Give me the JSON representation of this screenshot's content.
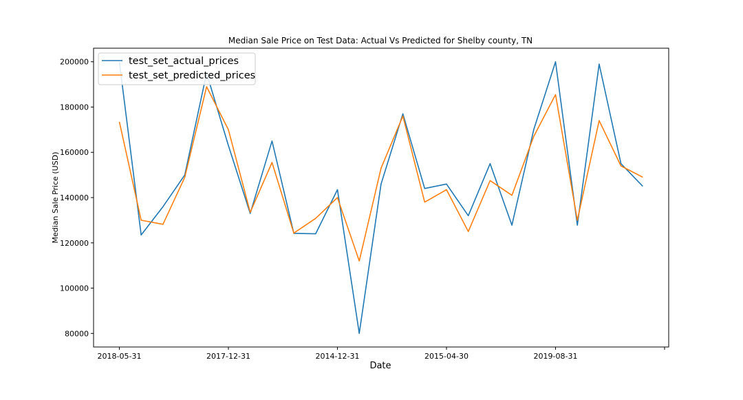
{
  "chart_data": {
    "type": "line",
    "title": "Median Sale Price on Test Data: Actual Vs Predicted for Shelby county, TN",
    "xlabel": "Date",
    "ylabel": "Median Sale Price (USD)",
    "x_tick_labels": [
      "2018-05-31",
      "2017-12-31",
      "2014-12-31",
      "2015-04-30",
      "2019-08-31"
    ],
    "y_ticks": [
      80000,
      100000,
      120000,
      140000,
      160000,
      180000,
      200000
    ],
    "ylim": [
      74000,
      206000
    ],
    "grid": false,
    "legend_position": "top-left",
    "series": [
      {
        "name": "test_set_actual_prices",
        "color": "#1f77b4",
        "values": [
          200000,
          123500,
          136000,
          150000,
          195000,
          163000,
          133000,
          165000,
          124200,
          124000,
          143500,
          80000,
          146000,
          177000,
          144000,
          146000,
          132000,
          155000,
          127800,
          170000,
          200000,
          127800,
          199000,
          155000,
          145000
        ]
      },
      {
        "name": "test_set_predicted_prices",
        "color": "#ff7f0e",
        "values": [
          173500,
          130000,
          128200,
          149000,
          189000,
          170000,
          133500,
          155500,
          124300,
          130800,
          140000,
          112000,
          153000,
          176000,
          138000,
          143500,
          125000,
          147500,
          141000,
          167000,
          185500,
          130000,
          174000,
          154000,
          149000
        ]
      }
    ]
  }
}
